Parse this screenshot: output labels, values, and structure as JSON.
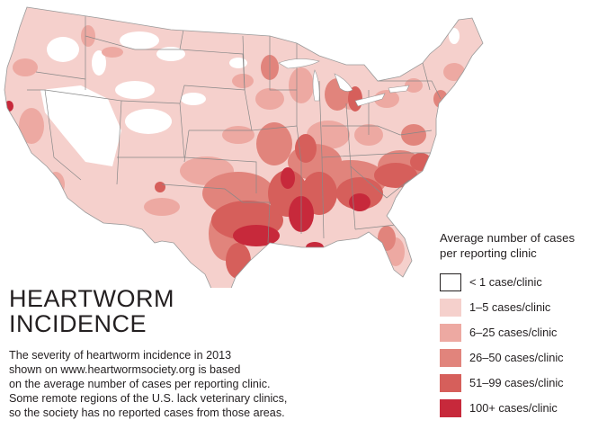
{
  "title": {
    "line1": "HEARTWORM",
    "line2": "INCIDENCE"
  },
  "description": [
    "The severity of heartworm incidence in 2013",
    "shown on www.heartwormsociety.org  is based",
    "on the average number of cases per reporting clinic.",
    "Some remote regions of the U.S. lack veterinary clinics,",
    "so the society has no reported cases from those areas."
  ],
  "legend": {
    "title_line1": "Average number of cases",
    "title_line2": "per reporting clinic",
    "items": [
      {
        "label": "< 1 case/clinic",
        "color": "#ffffff",
        "border": "#231f20"
      },
      {
        "label": "1–5 cases/clinic",
        "color": "#f5d0cc",
        "border": "none"
      },
      {
        "label": "6–25 cases/clinic",
        "color": "#eda9a2",
        "border": "none"
      },
      {
        "label": "26–50 cases/clinic",
        "color": "#e1847c",
        "border": "none"
      },
      {
        "label": "51–99 cases/clinic",
        "color": "#d65f5b",
        "border": "none"
      },
      {
        "label": "100+ cases/clinic",
        "color": "#c7293b",
        "border": "none"
      }
    ]
  },
  "colors": {
    "border": "#888888",
    "level0": "#ffffff",
    "level1": "#f5d0cc",
    "level2": "#eda9a2",
    "level3": "#e1847c",
    "level4": "#d65f5b",
    "level5": "#c7293b"
  }
}
